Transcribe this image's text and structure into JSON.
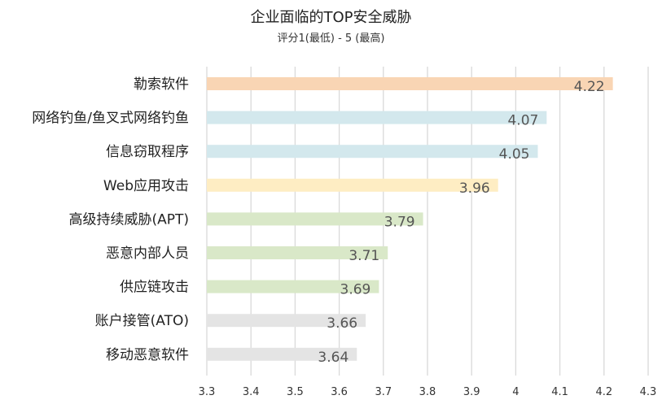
{
  "chart_data": {
    "type": "bar",
    "orientation": "horizontal",
    "title": "企业面临的TOP安全威胁",
    "subtitle": "评分1(最低) - 5 (最高)",
    "categories": [
      "勒索软件",
      "网络钓鱼/鱼叉式网络钓鱼",
      "信息窃取程序",
      "Web应用攻击",
      "高级持续威胁(APT)",
      "恶意内部人员",
      "供应链攻击",
      "账户接管(ATO)",
      "移动恶意软件"
    ],
    "values": [
      4.22,
      4.07,
      4.05,
      3.96,
      3.79,
      3.71,
      3.69,
      3.66,
      3.64
    ],
    "data_labels": [
      "4.22",
      "4.07",
      "4.05",
      "3.96",
      "3.79",
      "3.71",
      "3.69",
      "3.66",
      "3.64"
    ],
    "bar_colors": [
      "#F9D5B4",
      "#D3E8ED",
      "#D3E8ED",
      "#FEEDC3",
      "#D9E8C8",
      "#D9E8C8",
      "#D9E8C8",
      "#E4E4E4",
      "#E4E4E4"
    ],
    "xlim": [
      3.3,
      4.3
    ],
    "xticks": [
      "3.3",
      "3.4",
      "3.5",
      "3.6",
      "3.7",
      "3.8",
      "3.9",
      "4",
      "4.1",
      "4.2",
      "4.3"
    ],
    "grid": true,
    "legend": "none",
    "xlabel": "",
    "ylabel": ""
  }
}
